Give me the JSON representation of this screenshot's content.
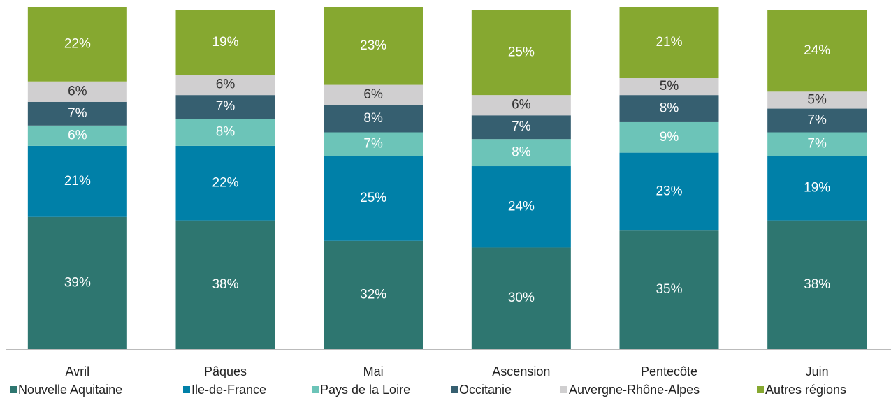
{
  "chart_data": {
    "type": "bar",
    "stacked": true,
    "categories": [
      "Avril",
      "Pâques",
      "Mai",
      "Ascension",
      "Pentecôte",
      "Juin"
    ],
    "ylim": [
      0,
      101
    ],
    "series": [
      {
        "name": "Nouvelle Aquitaine",
        "color": "#2e7670",
        "label_color": "#ffffff",
        "values": [
          39,
          38,
          32,
          30,
          35,
          38
        ],
        "value_labels": [
          "39%",
          "38%",
          "32%",
          "30%",
          "35%",
          "38%"
        ]
      },
      {
        "name": "Ile-de-France",
        "color": "#0080a8",
        "label_color": "#ffffff",
        "values": [
          21,
          22,
          25,
          24,
          23,
          19
        ],
        "value_labels": [
          "21%",
          "22%",
          "25%",
          "24%",
          "23%",
          "19%"
        ]
      },
      {
        "name": "Pays de la Loire",
        "color": "#6cc4b8",
        "label_color": "#ffffff",
        "values": [
          6,
          8,
          7,
          8,
          9,
          7
        ],
        "value_labels": [
          "6%",
          "8%",
          "7%",
          "8%",
          "9%",
          "7%"
        ]
      },
      {
        "name": "Occitanie",
        "color": "#365f70",
        "label_color": "#ffffff",
        "values": [
          7,
          7,
          8,
          7,
          8,
          7
        ],
        "value_labels": [
          "7%",
          "7%",
          "8%",
          "7%",
          "8%",
          "7%"
        ]
      },
      {
        "name": "Auvergne-Rhône-Alpes",
        "color": "#d0cfd0",
        "label_color": "#333333",
        "values": [
          6,
          6,
          6,
          6,
          5,
          5
        ],
        "value_labels": [
          "6%",
          "6%",
          "6%",
          "6%",
          "5%",
          "5%"
        ]
      },
      {
        "name": "Autres régions",
        "color": "#86a830",
        "label_color": "#ffffff",
        "values": [
          22,
          19,
          23,
          25,
          21,
          24
        ],
        "value_labels": [
          "22%",
          "19%",
          "23%",
          "25%",
          "21%",
          "24%"
        ]
      }
    ]
  }
}
